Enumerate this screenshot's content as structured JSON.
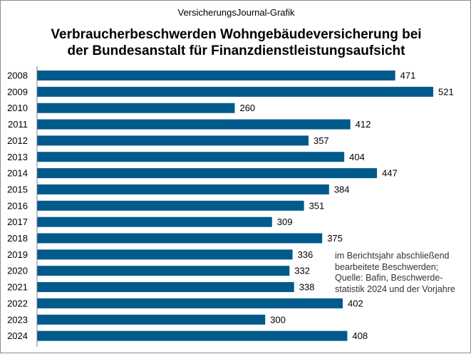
{
  "header": {
    "source": "VersicherungsJournal-Grafik"
  },
  "chart_data": {
    "type": "bar",
    "orientation": "horizontal",
    "title_lines": [
      "Verbraucherbeschwerden Wohngebäudeversicherung bei",
      "der Bundesanstalt für Finanzdienstleistungsaufsicht"
    ],
    "categories": [
      "2008",
      "2009",
      "2010",
      "2011",
      "2012",
      "2013",
      "2014",
      "2015",
      "2016",
      "2017",
      "2018",
      "2019",
      "2020",
      "2021",
      "2022",
      "2023",
      "2024"
    ],
    "values": [
      471,
      521,
      260,
      412,
      357,
      404,
      447,
      384,
      351,
      309,
      375,
      336,
      332,
      338,
      402,
      300,
      408
    ],
    "value_labels": true,
    "bar_color": "#005a8c",
    "xlim": [
      0,
      521
    ],
    "grid": false,
    "note_lines": [
      "im Berichtsjahr abschließend",
      "bearbeitete Beschwerden;",
      "Quelle: Bafin, Beschwerde-",
      "statistik 2024 und der Vorjahre"
    ]
  }
}
